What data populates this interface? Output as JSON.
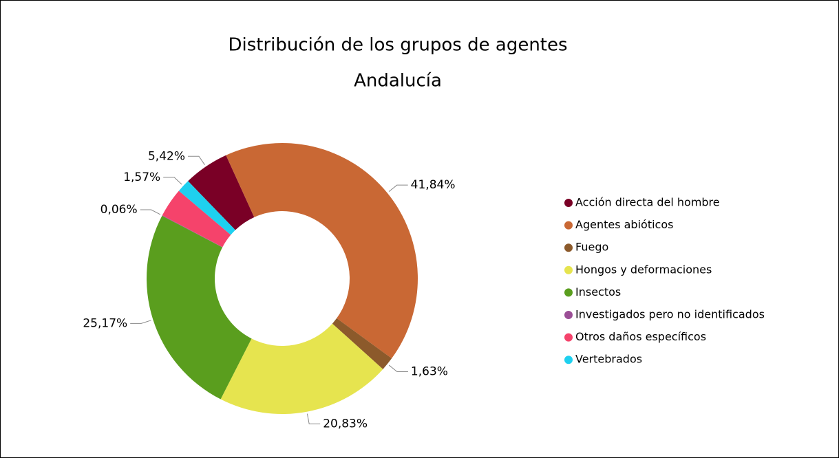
{
  "chart_data": {
    "type": "donut",
    "title": "Distribución de los grupos de agentes",
    "subtitle": "Andalucía",
    "categories": [
      "Acción directa del hombre",
      "Agentes abióticos",
      "Fuego",
      "Hongos y deformaciones",
      "Insectos",
      "Investigados pero no identificados",
      "Otros daños específicos",
      "Vertebrados"
    ],
    "values": [
      5.42,
      41.84,
      1.63,
      20.83,
      25.17,
      0.06,
      3.48,
      1.57
    ],
    "value_labels": [
      "5,42%",
      "41,84%",
      "1,63%",
      "20,83%",
      "25,17%",
      "0,06%",
      null,
      "1,57%"
    ],
    "colors": [
      "#7a0026",
      "#c96834",
      "#8c5a2b",
      "#e6e44f",
      "#5a9e1e",
      "#9b4f96",
      "#f5436b",
      "#1ed0ef"
    ],
    "legend": "right"
  }
}
